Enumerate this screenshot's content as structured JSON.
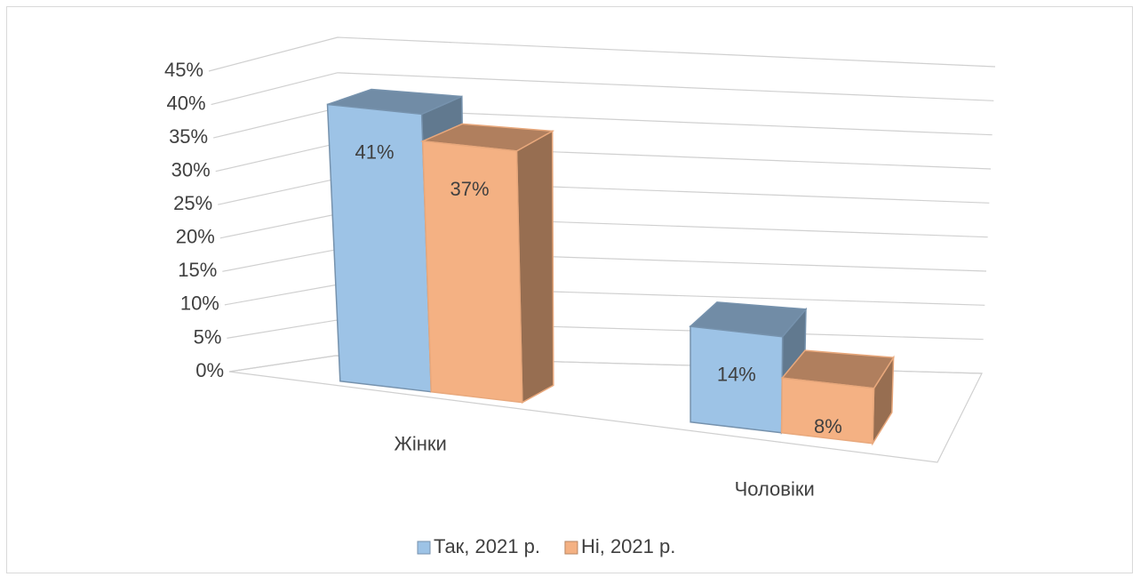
{
  "chart_data": {
    "type": "bar3d",
    "categories": [
      "Жінки",
      "Чоловіки"
    ],
    "series": [
      {
        "name": "Так, 2021 р.",
        "color": "#9dc3e6",
        "values": [
          41,
          14
        ],
        "value_labels": [
          "41%",
          "14%"
        ]
      },
      {
        "name": "Ні, 2021 р.",
        "color": "#f4b183",
        "values": [
          37,
          8
        ],
        "value_labels": [
          "37%",
          "8%"
        ]
      }
    ],
    "ylim": [
      0,
      45
    ],
    "yticks": [
      {
        "value": 0,
        "label": "0%"
      },
      {
        "value": 5,
        "label": "5%"
      },
      {
        "value": 10,
        "label": "10%"
      },
      {
        "value": 15,
        "label": "15%"
      },
      {
        "value": 20,
        "label": "20%"
      },
      {
        "value": 25,
        "label": "25%"
      },
      {
        "value": 30,
        "label": "30%"
      },
      {
        "value": 35,
        "label": "35%"
      },
      {
        "value": 40,
        "label": "40%"
      },
      {
        "value": 45,
        "label": "45%"
      }
    ],
    "grid": true,
    "legend": "bottom"
  }
}
